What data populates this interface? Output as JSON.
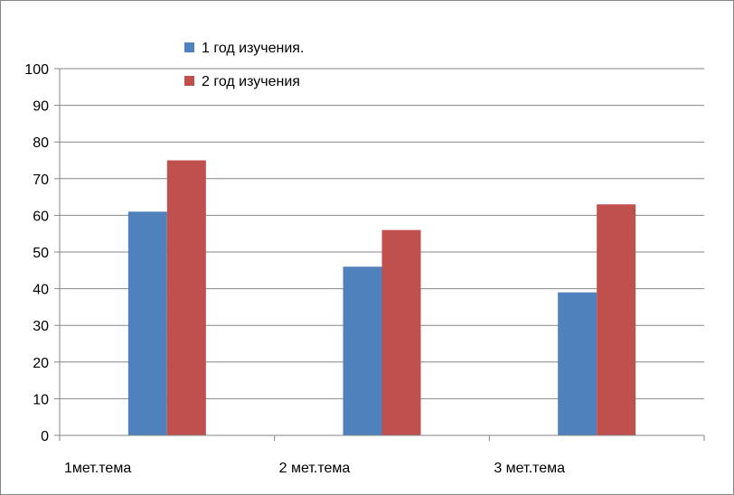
{
  "chart_data": {
    "type": "bar",
    "categories": [
      "1мет.тема",
      "2 мет.тема",
      "3 мет.тема"
    ],
    "series": [
      {
        "name": "1 год изучения.",
        "values": [
          61,
          46,
          39
        ],
        "color": "#4F81BD"
      },
      {
        "name": "2 год изучения",
        "values": [
          75,
          56,
          63
        ],
        "color": "#C0504D"
      }
    ],
    "title": "",
    "xlabel": "",
    "ylabel": "",
    "ylim": [
      0,
      100
    ],
    "yticks": [
      "0",
      "10",
      "20",
      "30",
      "40",
      "50",
      "60",
      "70",
      "80",
      "90",
      "100"
    ],
    "grid": true,
    "legend_position": "top"
  }
}
